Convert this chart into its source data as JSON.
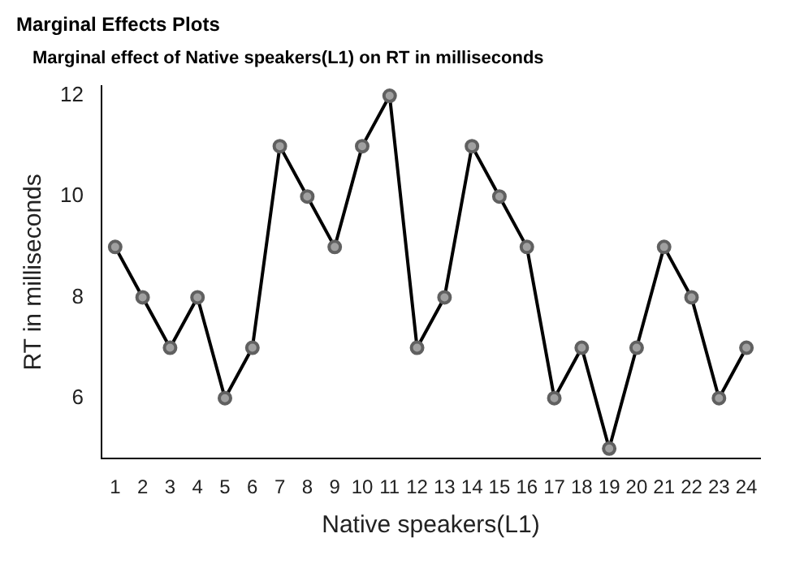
{
  "chart_data": {
    "type": "line",
    "title": "Marginal Effects Plots",
    "subtitle": "Marginal effect of Native speakers(L1) on RT in milliseconds",
    "xlabel": "Native speakers(L1)",
    "ylabel": "RT in milliseconds",
    "x": [
      1,
      2,
      3,
      4,
      5,
      6,
      7,
      8,
      9,
      10,
      11,
      12,
      13,
      14,
      15,
      16,
      17,
      18,
      19,
      20,
      21,
      22,
      23,
      24
    ],
    "series": [
      {
        "color": "#000000",
        "values": [
          9,
          8,
          7,
          8,
          6,
          7,
          11,
          10,
          9,
          11,
          12,
          7,
          8,
          11,
          10,
          9,
          6,
          7,
          5,
          7,
          9,
          8,
          6,
          7
        ]
      }
    ],
    "xlim": [
      0.5,
      24.5
    ],
    "xticks": [
      1,
      2,
      3,
      4,
      5,
      6,
      7,
      8,
      9,
      10,
      11,
      12,
      13,
      14,
      15,
      16,
      17,
      18,
      19,
      20,
      21,
      22,
      23,
      24
    ],
    "ylim": [
      4.8,
      12.2
    ],
    "yticks": [
      6,
      8,
      10,
      12
    ],
    "grid": false,
    "legend": false,
    "marker": "circle",
    "line_style": "solid"
  }
}
